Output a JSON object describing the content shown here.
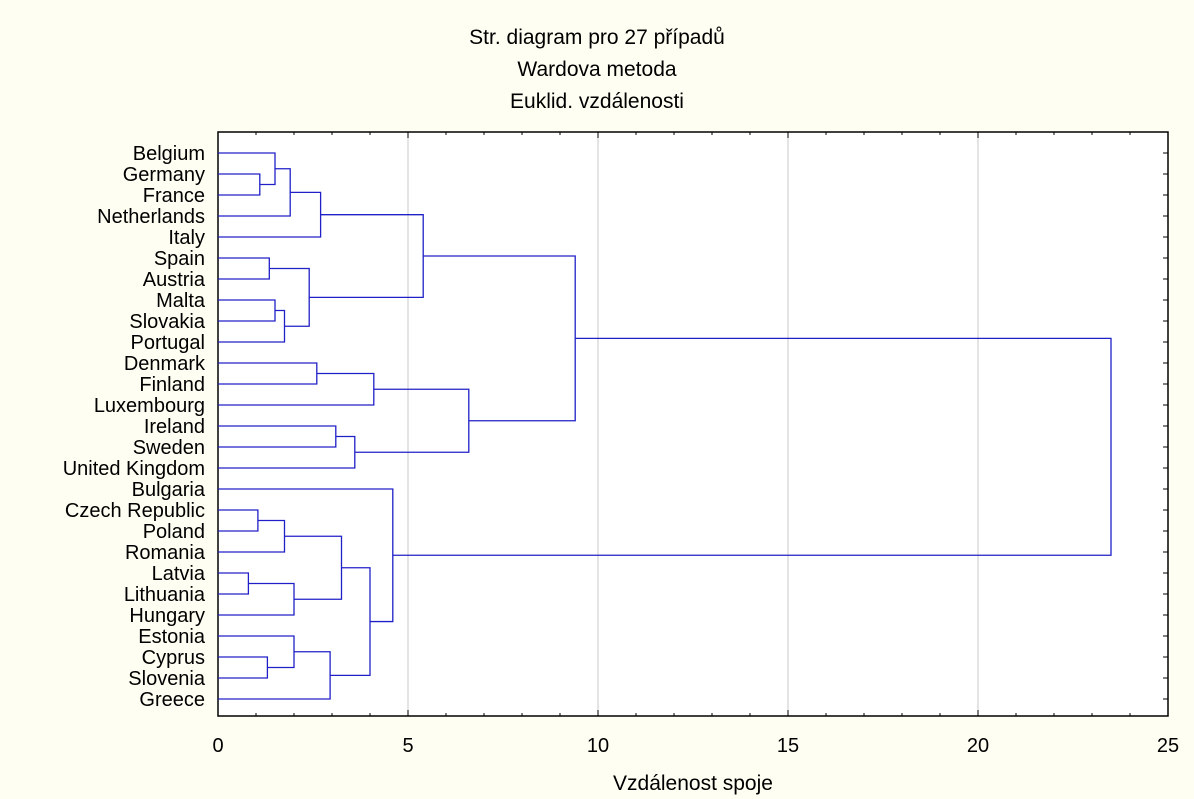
{
  "chart_data": {
    "type": "dendrogram",
    "title": "Str. diagram pro 27 případů",
    "subtitle_lines": [
      "Wardova metoda",
      "Euklid. vzdálenosti"
    ],
    "xlabel": "Vzdálenost spoje",
    "xlim": [
      0,
      25
    ],
    "xticks": [
      0,
      5,
      10,
      15,
      20,
      25
    ],
    "grid": "vertical",
    "colors": {
      "background": "#fffef2",
      "plot_background": "#ffffff",
      "lines": "#2020c8",
      "grid": "#c8c8c8"
    },
    "leaves": [
      "Belgium",
      "Germany",
      "France",
      "Netherlands",
      "Italy",
      "Spain",
      "Austria",
      "Malta",
      "Slovakia",
      "Portugal",
      "Denmark",
      "Finland",
      "Luxembourg",
      "Ireland",
      "Sweden",
      "United Kingdom",
      "Bulgaria",
      "Czech Republic",
      "Poland",
      "Romania",
      "Latvia",
      "Lithuania",
      "Hungary",
      "Estonia",
      "Cyprus",
      "Slovenia",
      "Greece"
    ],
    "merges": [
      {
        "left": "Germany",
        "right": "France",
        "height": 1.1
      },
      {
        "left": "Belgium",
        "right": "Germany+France",
        "height": 1.5
      },
      {
        "left": "Belgium+Germany+France",
        "right": "Netherlands",
        "height": 1.9
      },
      {
        "left": "Belgium…Netherlands",
        "right": "Italy",
        "height": 2.7
      },
      {
        "left": "Spain",
        "right": "Austria",
        "height": 1.35
      },
      {
        "left": "Malta",
        "right": "Slovakia",
        "height": 1.5
      },
      {
        "left": "Malta+Slovakia",
        "right": "Portugal",
        "height": 1.75
      },
      {
        "left": "Spain+Austria",
        "right": "Malta+Slovakia+Portugal",
        "height": 2.4
      },
      {
        "left": "Belgium…Italy",
        "right": "Spain…Portugal",
        "height": 5.4
      },
      {
        "left": "Denmark",
        "right": "Finland",
        "height": 2.6
      },
      {
        "left": "Denmark+Finland",
        "right": "Luxembourg",
        "height": 4.1
      },
      {
        "left": "Ireland",
        "right": "Sweden",
        "height": 3.1
      },
      {
        "left": "Ireland+Sweden",
        "right": "United Kingdom",
        "height": 3.6
      },
      {
        "left": "Denmark…Luxembourg",
        "right": "Ireland…United Kingdom",
        "height": 6.6
      },
      {
        "left": "Belgium…Portugal",
        "right": "Denmark…United Kingdom",
        "height": 9.4
      },
      {
        "left": "Czech Republic",
        "right": "Poland",
        "height": 1.05
      },
      {
        "left": "Czech Republic+Poland",
        "right": "Romania",
        "height": 1.75
      },
      {
        "left": "Latvia",
        "right": "Lithuania",
        "height": 0.8
      },
      {
        "left": "Latvia+Lithuania",
        "right": "Hungary",
        "height": 2.0
      },
      {
        "left": "Czech Republic…Romania",
        "right": "Latvia…Hungary",
        "height": 3.25
      },
      {
        "left": "Cyprus",
        "right": "Slovenia",
        "height": 1.3
      },
      {
        "left": "Estonia",
        "right": "Cyprus+Slovenia",
        "height": 2.0
      },
      {
        "left": "Estonia…Slovenia",
        "right": "Greece",
        "height": 2.95
      },
      {
        "left": "Czech Republic…Hungary",
        "right": "Estonia…Greece",
        "height": 4.0
      },
      {
        "left": "Bulgaria",
        "right": "Czech Republic…Greece",
        "height": 4.6
      },
      {
        "left": "Belgium…United Kingdom",
        "right": "Bulgaria…Greece",
        "height": 23.5
      }
    ]
  }
}
